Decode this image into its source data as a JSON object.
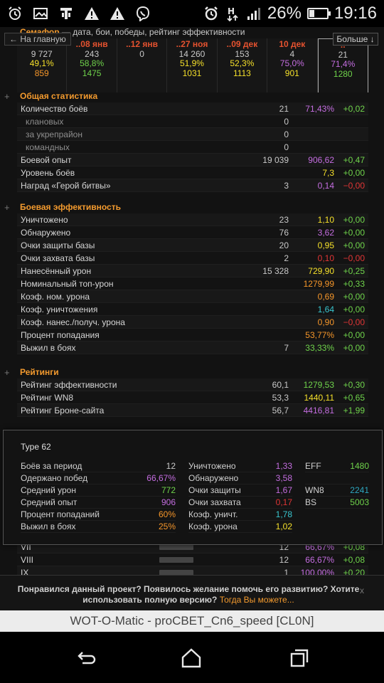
{
  "status_bar": {
    "battery_percent": "26%",
    "battery_level": 0.26,
    "time": "19:16",
    "net_label": "H",
    "icons": [
      "alarm-icon",
      "gallery-icon",
      "tank-icon",
      "warning-icon",
      "warning-icon",
      "viber-icon",
      "alarm-clock-icon",
      "data-arrows-icon",
      "signal-icon",
      "battery-icon"
    ]
  },
  "header": {
    "tank_name": "Семафор",
    "subtitle": "— дата, бои, победы, рейтинг эффективности",
    "back_label": "← На главную",
    "more_label": "Больше ↓"
  },
  "periods": [
    {
      "date": "",
      "battles": "9 727",
      "winrate": "49,1%",
      "eff": "859",
      "wr_color": "yellow",
      "eff_color": "orange"
    },
    {
      "date": "..08 янв",
      "battles": "243",
      "winrate": "58,8%",
      "eff": "1475",
      "wr_color": "green",
      "eff_color": "green"
    },
    {
      "date": "..12 янв",
      "battles": "0",
      "winrate": "",
      "eff": "",
      "wr_color": "gray",
      "eff_color": "gray"
    },
    {
      "date": "..27 ноя",
      "battles": "14 260",
      "winrate": "51,9%",
      "eff": "1031",
      "wr_color": "yellow",
      "eff_color": "yellow"
    },
    {
      "date": "..09 дек",
      "battles": "153",
      "winrate": "52,3%",
      "eff": "1113",
      "wr_color": "yellow",
      "eff_color": "yellow"
    },
    {
      "date": "10 дек",
      "battles": "4",
      "winrate": "75,0%",
      "eff": "901",
      "wr_color": "violet",
      "eff_color": "yellow"
    },
    {
      "date": "..",
      "battles": "21",
      "winrate": "71,4%",
      "eff": "1280",
      "wr_color": "violet",
      "eff_color": "green"
    }
  ],
  "sections": [
    {
      "title": "Общая статистика",
      "rows": [
        {
          "label": "Количество боёв",
          "v1": "21",
          "v2": "71,43%",
          "v3": "+0,02",
          "c2": "violet",
          "c3": "green",
          "sub": false
        },
        {
          "label": "клановых",
          "v1": "0",
          "v2": "",
          "v3": "",
          "c2": "gray",
          "c3": "gray",
          "sub": true
        },
        {
          "label": "за укрепрайон",
          "v1": "0",
          "v2": "",
          "v3": "",
          "c2": "gray",
          "c3": "gray",
          "sub": true
        },
        {
          "label": "командных",
          "v1": "0",
          "v2": "",
          "v3": "",
          "c2": "gray",
          "c3": "gray",
          "sub": true
        },
        {
          "label": "Боевой опыт",
          "v1": "19 039",
          "v2": "906,62",
          "v3": "+0,47",
          "c2": "violet",
          "c3": "green",
          "sub": false
        },
        {
          "label": "Уровень боёв",
          "v1": "",
          "v2": "7,3",
          "v3": "+0,00",
          "c2": "yellow",
          "c3": "green",
          "sub": false
        },
        {
          "label": "Наград «Герой битвы»",
          "v1": "3",
          "v2": "0,14",
          "v3": "−0,00",
          "c2": "violet",
          "c3": "red",
          "sub": false
        }
      ]
    },
    {
      "title": "Боевая эффективность",
      "rows": [
        {
          "label": "Уничтожено",
          "v1": "23",
          "v2": "1,10",
          "v3": "+0,00",
          "c2": "yellow",
          "c3": "green",
          "sub": false
        },
        {
          "label": "Обнаружено",
          "v1": "76",
          "v2": "3,62",
          "v3": "+0,00",
          "c2": "violet",
          "c3": "green",
          "sub": false
        },
        {
          "label": "Очки защиты базы",
          "v1": "20",
          "v2": "0,95",
          "v3": "+0,00",
          "c2": "yellow",
          "c3": "green",
          "sub": false
        },
        {
          "label": "Очки захвата базы",
          "v1": "2",
          "v2": "0,10",
          "v3": "−0,00",
          "c2": "red",
          "c3": "red",
          "sub": false
        },
        {
          "label": "Нанесённый урон",
          "v1": "15 328",
          "v2": "729,90",
          "v3": "+0,25",
          "c2": "yellow",
          "c3": "green",
          "sub": false
        },
        {
          "label": "Номинальный топ-урон",
          "v1": "",
          "v2": "1279,99",
          "v3": "+0,33",
          "c2": "orange",
          "c3": "green",
          "sub": false
        },
        {
          "label": "Коэф. ном. урона",
          "v1": "",
          "v2": "0,69",
          "v3": "+0,00",
          "c2": "orange",
          "c3": "green",
          "sub": false
        },
        {
          "label": "Коэф. уничтожения",
          "v1": "",
          "v2": "1,64",
          "v3": "+0,00",
          "c2": "cyan",
          "c3": "green",
          "sub": false
        },
        {
          "label": "Коэф. нанес./получ. урона",
          "v1": "",
          "v2": "0,90",
          "v3": "−0,00",
          "c2": "orange",
          "c3": "red",
          "sub": false
        },
        {
          "label": "Процент попадания",
          "v1": "",
          "v2": "53,77%",
          "v3": "+0,00",
          "c2": "orange",
          "c3": "green",
          "sub": false
        },
        {
          "label": "Выжил в боях",
          "v1": "7",
          "v2": "33,33%",
          "v3": "+0,00",
          "c2": "green",
          "c3": "green",
          "sub": false
        }
      ]
    },
    {
      "title": "Рейтинги",
      "rows": [
        {
          "label": "Рейтинг эффективности",
          "v1": "60,1",
          "v2": "1279,53",
          "v3": "+0,30",
          "c2": "green",
          "c3": "green",
          "sub": false
        },
        {
          "label": "Рейтинг WN8",
          "v1": "53,3",
          "v2": "1440,11",
          "v3": "+0,65",
          "c2": "yellow",
          "c3": "green",
          "sub": false
        },
        {
          "label": "Рейтинг Броне-сайта",
          "v1": "56,7",
          "v2": "4416,81",
          "v3": "+1,99",
          "c2": "violet",
          "c3": "green",
          "sub": false
        }
      ]
    }
  ],
  "popup": {
    "title": "Type 62",
    "col1": [
      {
        "label": "Боёв за период",
        "value": "12",
        "color": "gray"
      },
      {
        "label": "Одержано побед",
        "value": "66,67%",
        "color": "violet"
      },
      {
        "label": "Средний урон",
        "value": "772",
        "color": "green"
      },
      {
        "label": "Средний опыт",
        "value": "906",
        "color": "violet"
      },
      {
        "label": "Процент попаданий",
        "value": "60%",
        "color": "orange"
      },
      {
        "label": "Выжил в боях",
        "value": "25%",
        "color": "orange"
      }
    ],
    "col2": [
      {
        "label": "Уничтожено",
        "value": "1,33",
        "color": "violet"
      },
      {
        "label": "Обнаружено",
        "value": "3,58",
        "color": "violet"
      },
      {
        "label": "Очки защиты",
        "value": "1,67",
        "color": "violet"
      },
      {
        "label": "Очки захвата",
        "value": "0,17",
        "color": "red"
      },
      {
        "label": "Коэф. уничт.",
        "value": "1,78",
        "color": "cyan"
      },
      {
        "label": "Коэф. урона",
        "value": "1,02",
        "color": "yellow"
      }
    ],
    "col3": [
      {
        "label": "EFF",
        "value": "1480",
        "color": "green"
      },
      {
        "label": "",
        "value": "",
        "color": "gray"
      },
      {
        "label": "WN8",
        "value": "2241",
        "color": "teal"
      },
      {
        "label": "BS",
        "value": "5003",
        "color": "green"
      }
    ]
  },
  "under_rows": [
    {
      "label": "VII",
      "v1": "12",
      "v2": "66,67%",
      "v3": "+0,08"
    },
    {
      "label": "VIII",
      "v1": "12",
      "v2": "66,67%",
      "v3": "+0,08"
    },
    {
      "label": "IX",
      "v1": "1",
      "v2": "100,00%",
      "v3": "+0,20"
    }
  ],
  "banner": {
    "text": "Понравился данный проект? Появилось желание помочь его развитию? Хотите использовать полную версию?",
    "link": "Тогда Вы можете...",
    "close": "x"
  },
  "titlebar": {
    "text": "WOT-O-Matic - proCBET_Cn6_speed [CL0N]"
  },
  "colors": {
    "orange": "#f39a2e",
    "yellow": "#f5e02a",
    "green": "#6fd34b",
    "violet": "#c46de0",
    "red": "#e03535",
    "cyan": "#39c6cf",
    "teal": "#2ea7c0"
  }
}
